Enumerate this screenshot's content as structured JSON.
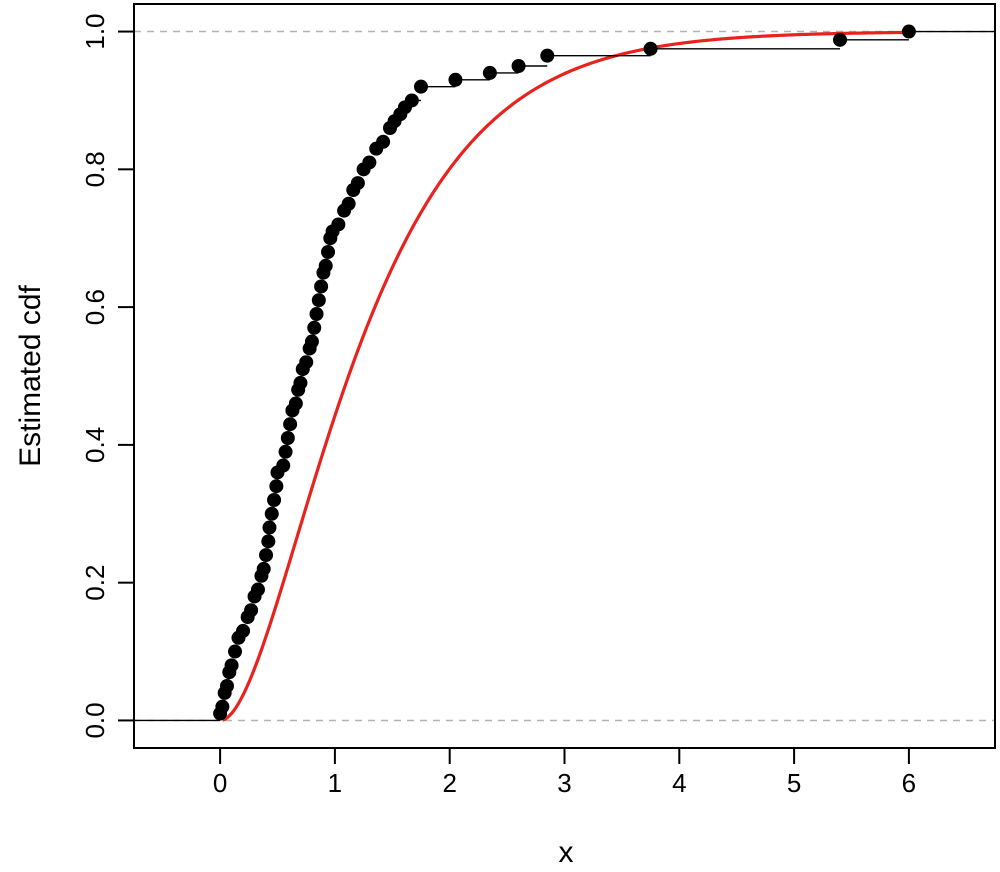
{
  "chart_data": {
    "type": "scatter",
    "title": "",
    "xlabel": "x",
    "ylabel": "Estimated cdf",
    "xlim": [
      -0.75,
      6.75
    ],
    "ylim": [
      -0.04,
      1.04
    ],
    "x_ticks": [
      "0",
      "1",
      "2",
      "3",
      "4",
      "5",
      "6"
    ],
    "y_ticks": [
      "0.0",
      "0.2",
      "0.4",
      "0.6",
      "0.8",
      "1.0"
    ],
    "reference_lines_y": [
      0,
      1
    ],
    "grid": false,
    "legend": "none",
    "series": [
      {
        "kind": "ecdf-step",
        "color": "#000000",
        "points": [
          [
            0.0,
            0.01
          ],
          [
            0.02,
            0.02
          ],
          [
            0.04,
            0.04
          ],
          [
            0.06,
            0.05
          ],
          [
            0.08,
            0.07
          ],
          [
            0.1,
            0.08
          ],
          [
            0.13,
            0.1
          ],
          [
            0.16,
            0.12
          ],
          [
            0.2,
            0.13
          ],
          [
            0.24,
            0.15
          ],
          [
            0.27,
            0.16
          ],
          [
            0.3,
            0.18
          ],
          [
            0.33,
            0.19
          ],
          [
            0.36,
            0.21
          ],
          [
            0.38,
            0.22
          ],
          [
            0.4,
            0.24
          ],
          [
            0.42,
            0.26
          ],
          [
            0.43,
            0.28
          ],
          [
            0.45,
            0.3
          ],
          [
            0.47,
            0.32
          ],
          [
            0.49,
            0.34
          ],
          [
            0.5,
            0.36
          ],
          [
            0.55,
            0.37
          ],
          [
            0.57,
            0.39
          ],
          [
            0.59,
            0.41
          ],
          [
            0.61,
            0.43
          ],
          [
            0.63,
            0.45
          ],
          [
            0.66,
            0.46
          ],
          [
            0.68,
            0.48
          ],
          [
            0.7,
            0.49
          ],
          [
            0.72,
            0.51
          ],
          [
            0.75,
            0.52
          ],
          [
            0.78,
            0.54
          ],
          [
            0.8,
            0.55
          ],
          [
            0.82,
            0.57
          ],
          [
            0.84,
            0.59
          ],
          [
            0.86,
            0.61
          ],
          [
            0.88,
            0.63
          ],
          [
            0.9,
            0.65
          ],
          [
            0.92,
            0.66
          ],
          [
            0.94,
            0.68
          ],
          [
            0.96,
            0.7
          ],
          [
            0.98,
            0.71
          ],
          [
            1.03,
            0.72
          ],
          [
            1.08,
            0.74
          ],
          [
            1.12,
            0.75
          ],
          [
            1.16,
            0.77
          ],
          [
            1.2,
            0.78
          ],
          [
            1.25,
            0.8
          ],
          [
            1.3,
            0.81
          ],
          [
            1.36,
            0.83
          ],
          [
            1.42,
            0.84
          ],
          [
            1.48,
            0.86
          ],
          [
            1.52,
            0.87
          ],
          [
            1.57,
            0.88
          ],
          [
            1.61,
            0.89
          ],
          [
            1.67,
            0.9
          ],
          [
            1.75,
            0.92
          ],
          [
            2.05,
            0.93
          ],
          [
            2.35,
            0.94
          ],
          [
            2.6,
            0.95
          ],
          [
            2.85,
            0.965
          ],
          [
            3.75,
            0.975
          ],
          [
            5.4,
            0.988
          ],
          [
            6.0,
            1.0
          ]
        ]
      },
      {
        "kind": "fitted-curve",
        "color": "#e8231e",
        "function": "1 - (1 + 1.5*x) * exp(-1.5*x)",
        "domain": [
          0.02,
          6.0
        ]
      }
    ]
  }
}
